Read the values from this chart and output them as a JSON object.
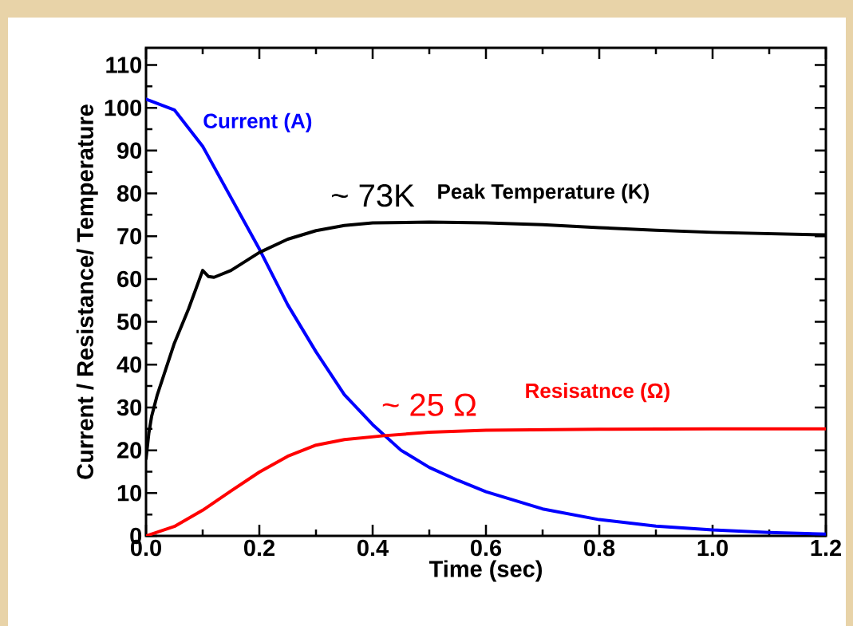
{
  "chart_data": {
    "type": "line",
    "xlabel": "Time (sec)",
    "ylabel": "Current / Resistance/ Temperature",
    "xlim": [
      0,
      1.2
    ],
    "ylim": [
      0,
      114
    ],
    "xticks": [
      {
        "value": 0,
        "label": "0.0"
      },
      {
        "value": 0.2,
        "label": "0.2"
      },
      {
        "value": 0.4,
        "label": "0.4"
      },
      {
        "value": 0.6,
        "label": "0.6"
      },
      {
        "value": 0.8,
        "label": "0.8"
      },
      {
        "value": 1.0,
        "label": "1.0"
      },
      {
        "value": 1.2,
        "label": "1.2"
      }
    ],
    "yticks": [
      0,
      10,
      20,
      30,
      40,
      50,
      60,
      70,
      80,
      90,
      100,
      110
    ],
    "grid": false,
    "legend": false,
    "marker": "none",
    "line_style": "solid",
    "series": [
      {
        "name": "Current (A)",
        "color": "#0000ff",
        "x": [
          0,
          0.05,
          0.1,
          0.15,
          0.2,
          0.25,
          0.3,
          0.35,
          0.4,
          0.45,
          0.5,
          0.55,
          0.6,
          0.7,
          0.8,
          0.9,
          1.0,
          1.1,
          1.2
        ],
        "values": [
          102,
          99.5,
          91,
          79,
          67,
          54,
          43,
          33,
          26,
          20,
          16,
          13,
          10.3,
          6.3,
          3.8,
          2.3,
          1.4,
          0.8,
          0.4
        ]
      },
      {
        "name": "Peak Temperature  (K)",
        "color": "#000000",
        "x": [
          0,
          0.005,
          0.01,
          0.02,
          0.035,
          0.05,
          0.075,
          0.1,
          0.11,
          0.12,
          0.15,
          0.2,
          0.25,
          0.3,
          0.35,
          0.4,
          0.5,
          0.6,
          0.7,
          0.8,
          0.9,
          1.0,
          1.1,
          1.2
        ],
        "values": [
          18,
          24,
          28,
          33,
          39,
          45,
          53,
          62,
          60.6,
          60.4,
          62,
          66.2,
          69.3,
          71.3,
          72.5,
          73.1,
          73.3,
          73.1,
          72.7,
          72,
          71.4,
          70.9,
          70.6,
          70.3
        ]
      },
      {
        "name": "Resisatnce (Ω)",
        "color": "#ff0000",
        "x": [
          0,
          0.05,
          0.1,
          0.15,
          0.2,
          0.25,
          0.3,
          0.35,
          0.42,
          0.5,
          0.6,
          0.8,
          1.0,
          1.2
        ],
        "values": [
          0,
          2.2,
          6,
          10.5,
          14.9,
          18.6,
          21.2,
          22.5,
          23.4,
          24.2,
          24.7,
          24.9,
          25,
          25
        ]
      }
    ],
    "annotations": [
      {
        "text": "~ 73K",
        "x": 0.4,
        "y": 73.1
      },
      {
        "text": "~ 25 Ω",
        "x": 0.5,
        "y": 24.2
      }
    ]
  }
}
